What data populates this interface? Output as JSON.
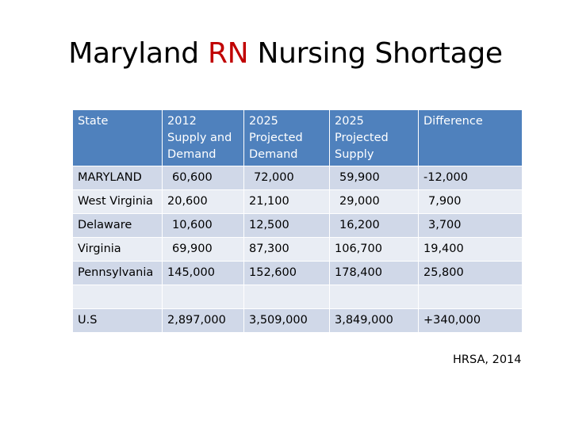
{
  "title": {
    "part1": "Maryland ",
    "highlight": "RN",
    "part2": " Nursing Shortage"
  },
  "table": {
    "headers": [
      "State",
      "2012 Supply and Demand",
      "2025 Projected Demand",
      "2025 Projected Supply",
      "Difference"
    ],
    "rows": [
      [
        "MARYLAND",
        "60,600",
        "72,000",
        "59,900",
        "-12,000"
      ],
      [
        "West Virginia",
        "20,600",
        "21,100",
        "29,000",
        "7,900"
      ],
      [
        "Delaware",
        "10,600",
        "12,500",
        "16,200",
        "3,700"
      ],
      [
        "Virginia",
        "69,900",
        "87,300",
        "106,700",
        "19,400"
      ],
      [
        "Pennsylvania",
        "145,000",
        "152,600",
        "178,400",
        "25,800"
      ],
      [
        "",
        "",
        "",
        "",
        ""
      ],
      [
        "U.S",
        "2,897,000",
        "3,509,000",
        "3,849,000",
        "+340,000"
      ]
    ]
  },
  "source": "HRSA, 2014",
  "colors": {
    "header_bg": "#4f81bd",
    "row_odd": "#d0d8e8",
    "row_even": "#e9edf4",
    "highlight": "#c00000"
  }
}
